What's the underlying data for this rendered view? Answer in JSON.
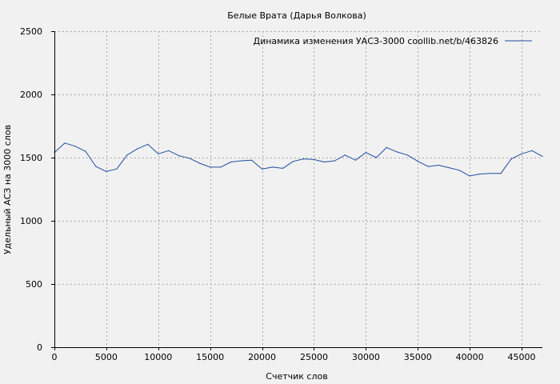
{
  "colors": {
    "background": "#f1f1f1",
    "plot_background": "#f1f1f1",
    "series": "#1f4fa0",
    "grid": "#a8a8a8",
    "axis": "#000000"
  },
  "chart_data": {
    "type": "line",
    "title": "Белые Врата (Дарья Волкова)",
    "xlabel": "Счетчик слов",
    "ylabel": "Удельный АСЗ на 3000 слов",
    "xlim": [
      0,
      47000
    ],
    "ylim": [
      0,
      2500
    ],
    "xticks": [
      0,
      5000,
      10000,
      15000,
      20000,
      25000,
      30000,
      35000,
      40000,
      45000
    ],
    "yticks": [
      0,
      500,
      1000,
      1500,
      2000,
      2500
    ],
    "grid": true,
    "legend_position": "top-right",
    "series": [
      {
        "name": "Динамика изменения УАСЗ-3000  coollib.net/b/463826",
        "x": [
          0,
          1000,
          2000,
          3000,
          4000,
          5000,
          6000,
          7000,
          8000,
          9000,
          10000,
          11000,
          12000,
          13000,
          14000,
          15000,
          16000,
          17000,
          18000,
          19000,
          20000,
          21000,
          22000,
          23000,
          24000,
          25000,
          26000,
          27000,
          28000,
          29000,
          30000,
          31000,
          32000,
          33000,
          34000,
          35000,
          36000,
          37000,
          38000,
          39000,
          40000,
          41000,
          42000,
          43000,
          44000,
          45000,
          46000,
          47000
        ],
        "values": [
          1540,
          1615,
          1590,
          1550,
          1430,
          1390,
          1410,
          1520,
          1570,
          1605,
          1530,
          1555,
          1515,
          1495,
          1455,
          1425,
          1425,
          1465,
          1475,
          1480,
          1410,
          1425,
          1415,
          1470,
          1490,
          1485,
          1465,
          1475,
          1520,
          1480,
          1540,
          1500,
          1580,
          1545,
          1520,
          1470,
          1430,
          1440,
          1420,
          1400,
          1355,
          1370,
          1375,
          1375,
          1490,
          1530,
          1555,
          1510
        ]
      }
    ]
  }
}
